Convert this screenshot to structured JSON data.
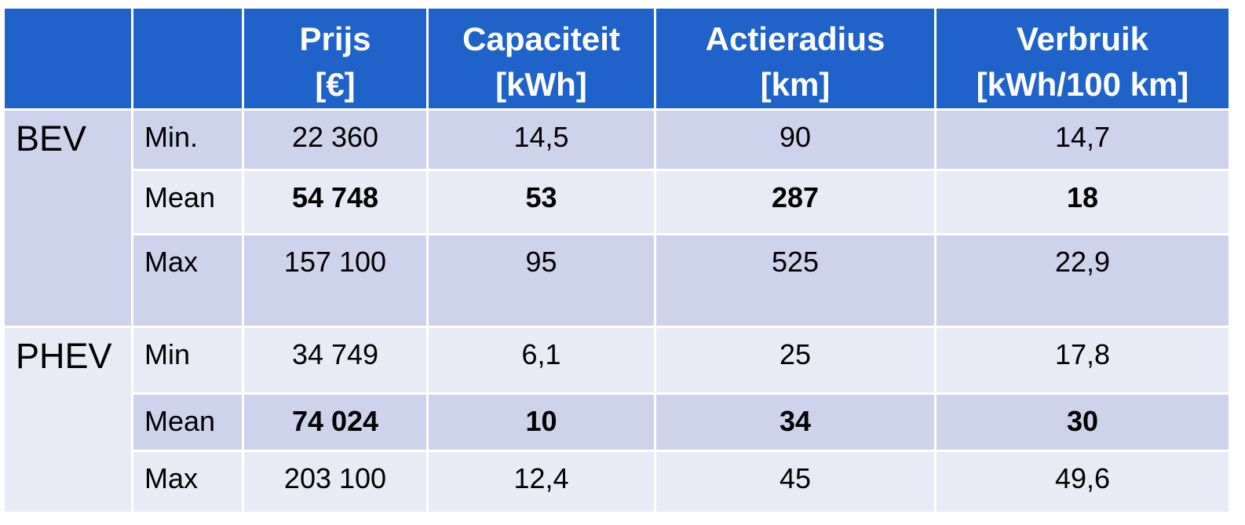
{
  "header": {
    "columns": [
      {
        "name": "Prijs",
        "unit": "[€]"
      },
      {
        "name": "Capaciteit",
        "unit": "[kWh]"
      },
      {
        "name": "Actieradius",
        "unit": "[km]"
      },
      {
        "name": "Verbruik",
        "unit": "[kWh/100 km]"
      }
    ]
  },
  "groups": [
    {
      "label": "BEV",
      "rows": [
        {
          "label": "Min.",
          "values": [
            "22 360",
            "14,5",
            "90",
            "14,7"
          ]
        },
        {
          "label": "Mean",
          "values": [
            "54 748",
            "53",
            "287",
            "18"
          ]
        },
        {
          "label": "Max",
          "values": [
            "157 100",
            "95",
            "525",
            "22,9"
          ]
        }
      ]
    },
    {
      "label": "PHEV",
      "rows": [
        {
          "label": "Min",
          "values": [
            "34 749",
            "6,1",
            "25",
            "17,8"
          ]
        },
        {
          "label": "Mean",
          "values": [
            "74 024",
            "10",
            "34",
            "30"
          ]
        },
        {
          "label": "Max",
          "values": [
            "203 100",
            "12,4",
            "45",
            "49,6"
          ]
        }
      ]
    }
  ]
}
